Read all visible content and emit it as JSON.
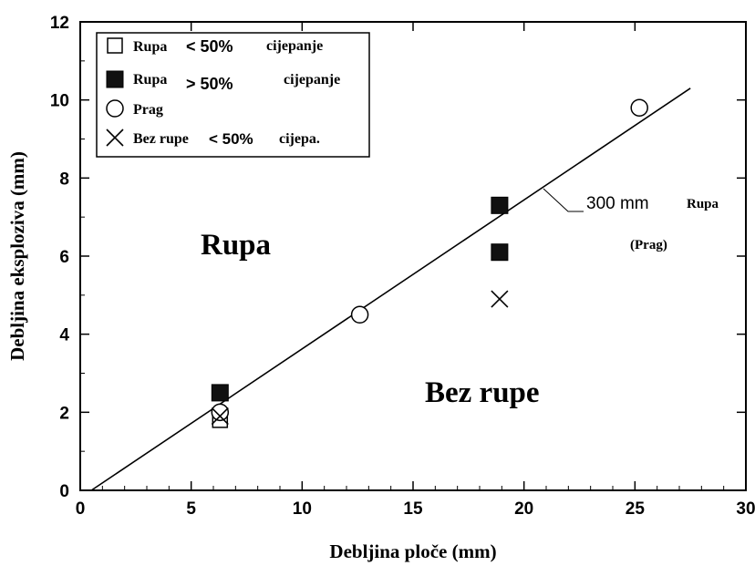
{
  "chart_data": {
    "type": "scatter",
    "xlabel": "Debljina ploče  (mm)",
    "ylabel": "Debljina eksploziva  (mm)",
    "xlim": [
      0,
      30
    ],
    "ylim": [
      0,
      12
    ],
    "xticks": [
      "0",
      "5",
      "10",
      "15",
      "20",
      "25",
      "30"
    ],
    "yticks": [
      "0",
      "2",
      "4",
      "6",
      "8",
      "10",
      "12"
    ],
    "grid": false,
    "legend_position": "top-left",
    "series": [
      {
        "name": "Rupa < 50% cijepanje",
        "legend_text": "Rupa",
        "legend_mid": "< 50%",
        "legend_end": "cijepanje",
        "marker": "open-square",
        "points": [
          [
            6.3,
            1.8
          ]
        ]
      },
      {
        "name": "Rupa > 50% cijepanje",
        "legend_text": "Rupa",
        "legend_mid": "> 50%",
        "legend_end": "cijepanje",
        "marker": "filled-square",
        "points": [
          [
            6.3,
            2.5
          ],
          [
            18.9,
            7.3
          ],
          [
            18.9,
            6.1
          ]
        ]
      },
      {
        "name": "Prag",
        "legend_text": "Prag",
        "legend_mid": "",
        "legend_end": "",
        "marker": "open-circle",
        "points": [
          [
            6.3,
            2.0
          ],
          [
            12.6,
            4.5
          ],
          [
            25.2,
            9.8
          ]
        ]
      },
      {
        "name": "Bez rupe < 50%cijepa.",
        "legend_text": "Bez rupe",
        "legend_mid": "< 50%",
        "legend_end": "cijepa.",
        "marker": "x",
        "points": [
          [
            6.3,
            1.9
          ],
          [
            18.9,
            4.9
          ]
        ]
      }
    ],
    "threshold_line": {
      "from": [
        0.5,
        0
      ],
      "to": [
        27.5,
        10.3
      ]
    },
    "annotations": {
      "region_above": "Rupa",
      "region_below": "Bez rupe",
      "line_label": "300 mm",
      "line_label_word": "Rupa",
      "line_label_sub": "(Prag)"
    }
  }
}
